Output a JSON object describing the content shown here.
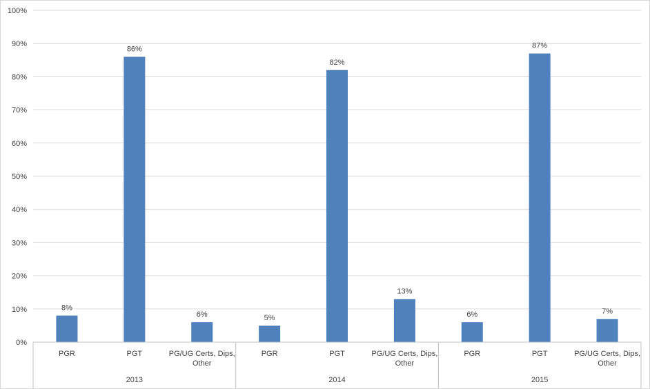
{
  "chart_data": {
    "type": "bar",
    "ylim": [
      0,
      100
    ],
    "y_ticks": [
      "0%",
      "10%",
      "20%",
      "30%",
      "40%",
      "50%",
      "60%",
      "70%",
      "80%",
      "90%",
      "100%"
    ],
    "grid": true,
    "legend": "none",
    "groups": [
      {
        "year": "2013",
        "bars": [
          {
            "category": [
              "PGR"
            ],
            "value": 8,
            "label": "8%"
          },
          {
            "category": [
              "PGT"
            ],
            "value": 86,
            "label": "86%"
          },
          {
            "category": [
              "PG/UG Certs, Dips,",
              "Other"
            ],
            "value": 6,
            "label": "6%"
          }
        ]
      },
      {
        "year": "2014",
        "bars": [
          {
            "category": [
              "PGR"
            ],
            "value": 5,
            "label": "5%"
          },
          {
            "category": [
              "PGT"
            ],
            "value": 82,
            "label": "82%"
          },
          {
            "category": [
              "PG/UG Certs, Dips,",
              "Other"
            ],
            "value": 13,
            "label": "13%"
          }
        ]
      },
      {
        "year": "2015",
        "bars": [
          {
            "category": [
              "PGR"
            ],
            "value": 6,
            "label": "6%"
          },
          {
            "category": [
              "PGT"
            ],
            "value": 87,
            "label": "87%"
          },
          {
            "category": [
              "PG/UG Certs, Dips,",
              "Other"
            ],
            "value": 7,
            "label": "7%"
          }
        ]
      }
    ],
    "colors": {
      "bar": "#4f81bd",
      "grid": "#d9d9d9",
      "axis": "#bfbfbf",
      "text": "#404040"
    }
  }
}
